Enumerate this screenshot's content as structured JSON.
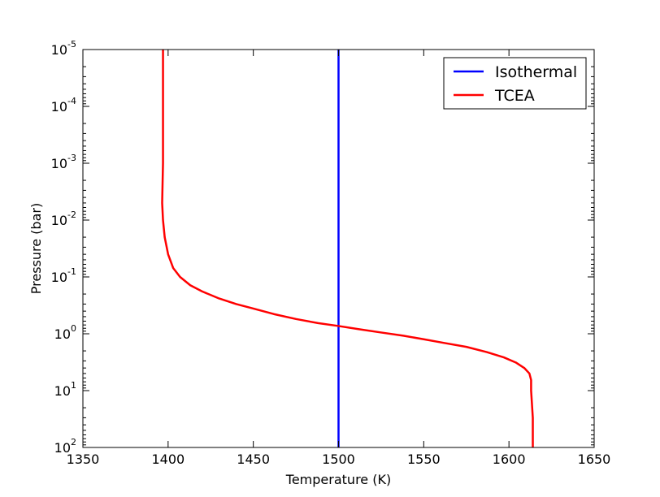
{
  "chart_data": {
    "type": "line",
    "title": "",
    "xlabel": "Temperature  (K)",
    "ylabel": "Pressure  (bar)",
    "xlim": [
      1350,
      1650
    ],
    "ylim": [
      100,
      1e-05
    ],
    "yscale": "log",
    "grid": false,
    "legend_position": "top-right",
    "x_ticks": [
      {
        "value": 1350,
        "label": "1350"
      },
      {
        "value": 1400,
        "label": "1400"
      },
      {
        "value": 1450,
        "label": "1450"
      },
      {
        "value": 1500,
        "label": "1500"
      },
      {
        "value": 1550,
        "label": "1550"
      },
      {
        "value": 1600,
        "label": "1600"
      },
      {
        "value": 1650,
        "label": "1650"
      }
    ],
    "y_ticks": [
      {
        "value": 1e-05,
        "base": "10",
        "exp": "-5"
      },
      {
        "value": 0.0001,
        "base": "10",
        "exp": "-4"
      },
      {
        "value": 0.001,
        "base": "10",
        "exp": "-3"
      },
      {
        "value": 0.01,
        "base": "10",
        "exp": "-2"
      },
      {
        "value": 0.1,
        "base": "10",
        "exp": "-1"
      },
      {
        "value": 1,
        "base": "10",
        "exp": "0"
      },
      {
        "value": 10,
        "base": "10",
        "exp": "1"
      },
      {
        "value": 100,
        "base": "10",
        "exp": "2"
      }
    ],
    "series": [
      {
        "name": "Isothermal",
        "color": "#0000ff",
        "points": [
          [
            1500,
            1e-05
          ],
          [
            1500,
            100
          ]
        ]
      },
      {
        "name": "TCEA",
        "color": "#ff0000",
        "points": [
          [
            1397,
            1e-05
          ],
          [
            1397,
            0.0001
          ],
          [
            1397,
            0.001
          ],
          [
            1396.5,
            0.005
          ],
          [
            1397,
            0.01
          ],
          [
            1398,
            0.02
          ],
          [
            1400,
            0.04
          ],
          [
            1403,
            0.07
          ],
          [
            1407,
            0.1
          ],
          [
            1413,
            0.14
          ],
          [
            1420,
            0.18
          ],
          [
            1430,
            0.24
          ],
          [
            1440,
            0.3
          ],
          [
            1450,
            0.36
          ],
          [
            1462,
            0.45
          ],
          [
            1475,
            0.55
          ],
          [
            1488,
            0.65
          ],
          [
            1500,
            0.73
          ],
          [
            1512,
            0.83
          ],
          [
            1525,
            0.95
          ],
          [
            1538,
            1.08
          ],
          [
            1550,
            1.25
          ],
          [
            1562,
            1.45
          ],
          [
            1575,
            1.7
          ],
          [
            1587,
            2.1
          ],
          [
            1597,
            2.6
          ],
          [
            1604,
            3.2
          ],
          [
            1609,
            4.0
          ],
          [
            1612,
            5.0
          ],
          [
            1613,
            6.5
          ],
          [
            1613,
            10
          ],
          [
            1614,
            30
          ],
          [
            1614,
            100
          ]
        ]
      }
    ]
  }
}
